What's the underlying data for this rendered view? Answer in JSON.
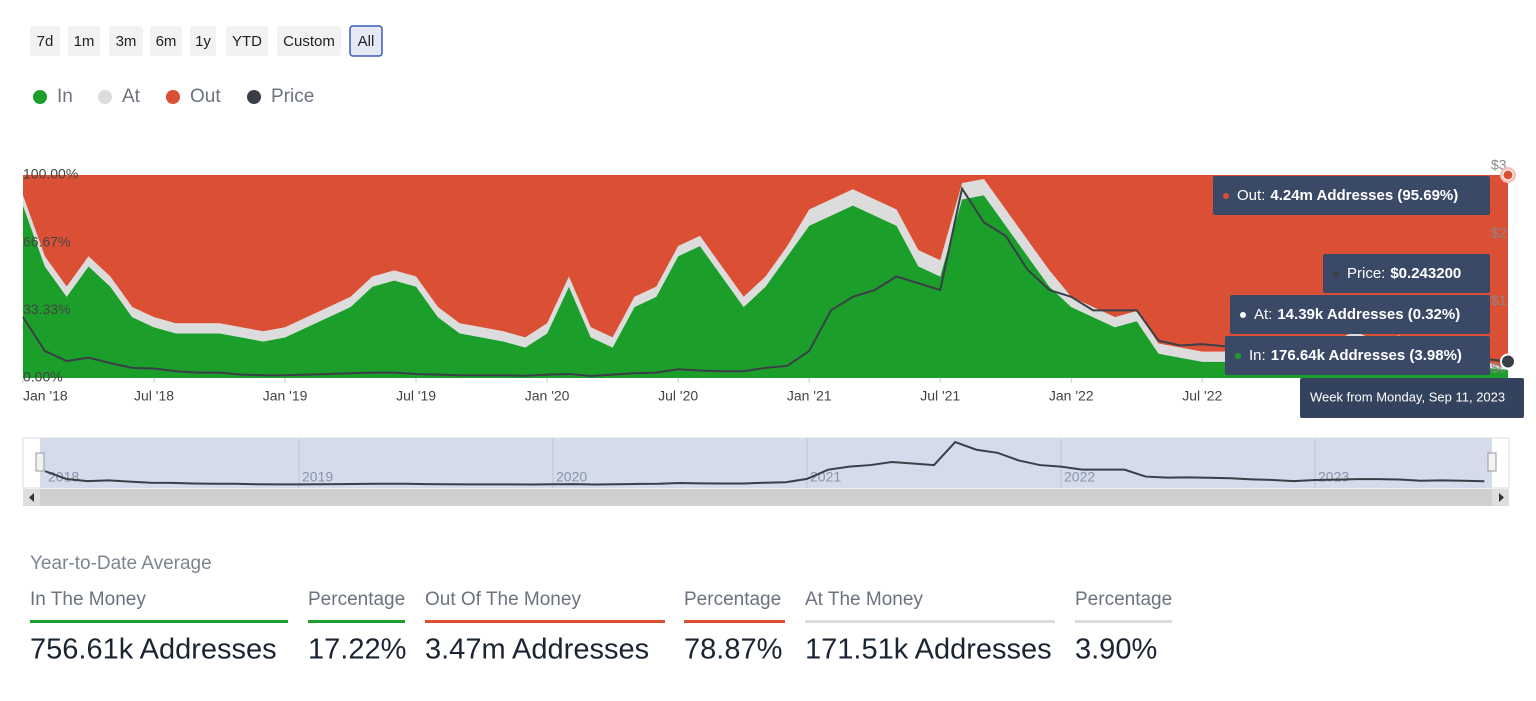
{
  "buttons": {
    "labels": [
      "7d",
      "1m",
      "3m",
      "6m",
      "1y",
      "YTD",
      "Custom",
      "All"
    ],
    "selected_index": 7
  },
  "chart_data": {
    "type": "stacked-area-percent",
    "x": [
      "2018-01",
      "2018-02",
      "2018-03",
      "2018-04",
      "2018-05",
      "2018-06",
      "2018-07",
      "2018-08",
      "2018-09",
      "2018-10",
      "2018-11",
      "2018-12",
      "2019-01",
      "2019-02",
      "2019-03",
      "2019-04",
      "2019-05",
      "2019-06",
      "2019-07",
      "2019-08",
      "2019-09",
      "2019-10",
      "2019-11",
      "2019-12",
      "2020-01",
      "2020-02",
      "2020-03",
      "2020-04",
      "2020-05",
      "2020-06",
      "2020-07",
      "2020-08",
      "2020-09",
      "2020-10",
      "2020-11",
      "2020-12",
      "2021-01",
      "2021-02",
      "2021-03",
      "2021-04",
      "2021-05",
      "2021-06",
      "2021-07",
      "2021-08",
      "2021-09",
      "2021-10",
      "2021-11",
      "2021-12",
      "2022-01",
      "2022-02",
      "2022-03",
      "2022-04",
      "2022-05",
      "2022-06",
      "2022-07",
      "2022-08",
      "2022-09",
      "2022-10",
      "2022-11",
      "2022-12",
      "2023-01",
      "2023-02",
      "2023-03",
      "2023-04",
      "2023-05",
      "2023-06",
      "2023-07",
      "2023-08",
      "2023-09"
    ],
    "xticks": [
      {
        "value": "2018-01",
        "label": "Jan '18"
      },
      {
        "value": "2018-07",
        "label": "Jul '18"
      },
      {
        "value": "2019-01",
        "label": "Jan '19"
      },
      {
        "value": "2019-07",
        "label": "Jul '19"
      },
      {
        "value": "2020-01",
        "label": "Jan '20"
      },
      {
        "value": "2020-07",
        "label": "Jul '20"
      },
      {
        "value": "2021-01",
        "label": "Jan '21"
      },
      {
        "value": "2021-07",
        "label": "Jul '21"
      },
      {
        "value": "2022-01",
        "label": "Jan '22"
      },
      {
        "value": "2022-07",
        "label": "Jul '22"
      }
    ],
    "ylim": [
      0,
      100
    ],
    "yticks": [
      {
        "value": 0,
        "label": "0.00%"
      },
      {
        "value": 33.33,
        "label": "33.33%"
      },
      {
        "value": 66.67,
        "label": "66.67%"
      },
      {
        "value": 100,
        "label": "100.00%"
      }
    ],
    "y2lim": [
      0,
      3
    ],
    "y2ticks": [
      {
        "value": 0,
        "label": "$0"
      },
      {
        "value": 1,
        "label": "$1"
      },
      {
        "value": 2,
        "label": "$2"
      },
      {
        "value": 3,
        "label": "$3"
      }
    ],
    "series": [
      {
        "name": "In",
        "color": "#1c9e2b",
        "values": [
          85,
          55,
          40,
          55,
          45,
          30,
          25,
          22,
          22,
          22,
          20,
          18,
          20,
          25,
          30,
          35,
          45,
          48,
          45,
          30,
          22,
          20,
          18,
          15,
          22,
          45,
          20,
          15,
          35,
          40,
          60,
          65,
          50,
          35,
          45,
          60,
          75,
          80,
          85,
          80,
          75,
          55,
          50,
          88,
          90,
          75,
          60,
          45,
          35,
          30,
          25,
          28,
          12,
          10,
          8,
          8,
          9,
          10,
          7,
          6,
          15,
          20,
          15,
          18,
          12,
          6,
          8,
          5,
          3.98
        ]
      },
      {
        "name": "At",
        "color": "#dcdcdc",
        "values": [
          5,
          5,
          5,
          5,
          5,
          5,
          5,
          5,
          5,
          5,
          5,
          5,
          5,
          5,
          5,
          5,
          5,
          5,
          5,
          5,
          5,
          5,
          5,
          5,
          5,
          5,
          5,
          5,
          5,
          5,
          5,
          5,
          5,
          5,
          5,
          5,
          8,
          8,
          8,
          8,
          8,
          8,
          8,
          8,
          8,
          8,
          8,
          8,
          5,
          5,
          5,
          5,
          5,
          5,
          5,
          5,
          5,
          5,
          5,
          5,
          3,
          3,
          3,
          3,
          3,
          3,
          3,
          3,
          0.32
        ]
      },
      {
        "name": "Out",
        "color": "#db5035",
        "values": [
          10,
          40,
          55,
          40,
          50,
          65,
          70,
          73,
          73,
          73,
          75,
          77,
          75,
          70,
          65,
          60,
          50,
          47,
          50,
          65,
          73,
          75,
          77,
          80,
          73,
          50,
          75,
          80,
          60,
          55,
          35,
          30,
          45,
          60,
          50,
          35,
          17,
          12,
          7,
          12,
          17,
          37,
          42,
          4,
          2,
          17,
          32,
          47,
          60,
          65,
          70,
          67,
          83,
          85,
          87,
          87,
          86,
          85,
          88,
          89,
          82,
          77,
          82,
          79,
          85,
          91,
          89,
          92,
          95.69
        ]
      },
      {
        "name": "Price",
        "color": "#3a3f47",
        "axis": "y2",
        "values": [
          0.9,
          0.4,
          0.25,
          0.3,
          0.22,
          0.15,
          0.14,
          0.1,
          0.08,
          0.08,
          0.05,
          0.04,
          0.04,
          0.05,
          0.06,
          0.07,
          0.08,
          0.08,
          0.06,
          0.05,
          0.04,
          0.04,
          0.04,
          0.033,
          0.05,
          0.06,
          0.03,
          0.05,
          0.07,
          0.08,
          0.13,
          0.11,
          0.1,
          0.1,
          0.15,
          0.18,
          0.4,
          1.0,
          1.2,
          1.3,
          1.5,
          1.4,
          1.3,
          2.8,
          2.3,
          2.1,
          1.6,
          1.3,
          1.2,
          1.0,
          1.0,
          1.0,
          0.55,
          0.48,
          0.5,
          0.47,
          0.44,
          0.37,
          0.33,
          0.25,
          0.33,
          0.35,
          0.38,
          0.38,
          0.36,
          0.28,
          0.3,
          0.28,
          0.2432
        ]
      }
    ]
  },
  "tooltip": {
    "rows": [
      {
        "label": "Out:",
        "value": "4.24m Addresses (95.69%)",
        "color": "#db5035"
      },
      {
        "label": "Price:",
        "value": "$0.243200",
        "color": "#3a3f47"
      },
      {
        "label": "At:",
        "value": "14.39k Addresses (0.32%)",
        "color": "#ffffff"
      },
      {
        "label": "In:",
        "value": "176.64k Addresses (3.98%)",
        "color": "#1c9e2b"
      }
    ],
    "footer": "Week from Monday, Sep 11, 2023"
  },
  "navigator": {
    "labels": [
      "2018",
      "2019",
      "2020",
      "2021",
      "2022",
      "2023"
    ]
  },
  "summary": {
    "title": "Year-to-Date Average",
    "items": [
      {
        "label": "In The Money",
        "value": "756.61k Addresses",
        "color": "#1c9e2b"
      },
      {
        "label": "Percentage",
        "value": "17.22%",
        "color": "#1c9e2b"
      },
      {
        "label": "Out Of The Money",
        "value": "3.47m Addresses",
        "color": "#db5035"
      },
      {
        "label": "Percentage",
        "value": "78.87%",
        "color": "#db5035"
      },
      {
        "label": "At The Money",
        "value": "171.51k Addresses",
        "color": "#dcdcdc"
      },
      {
        "label": "Percentage",
        "value": "3.90%",
        "color": "#dcdcdc"
      }
    ]
  }
}
